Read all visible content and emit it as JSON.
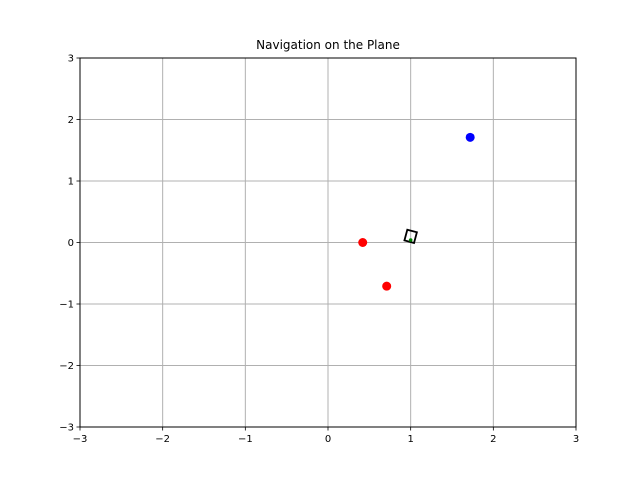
{
  "chart_data": {
    "type": "scatter",
    "title": "Navigation on the Plane",
    "xlabel": "",
    "ylabel": "",
    "xlim": [
      -3,
      3
    ],
    "ylim": [
      -3,
      3
    ],
    "xticks": [
      "−3",
      "−2",
      "−1",
      "0",
      "1",
      "2",
      "3"
    ],
    "yticks": [
      "−3",
      "−2",
      "−1",
      "0",
      "1",
      "2",
      "3"
    ],
    "grid": true,
    "series": [
      {
        "color": "#ff0000",
        "points": [
          {
            "x": 0.42,
            "y": 0.0
          },
          {
            "x": 0.71,
            "y": -0.71
          }
        ]
      },
      {
        "color": "#0000ff",
        "points": [
          {
            "x": 1.72,
            "y": 1.71
          }
        ]
      }
    ],
    "agent": {
      "shape": "rectangle",
      "center": {
        "x": 1.0,
        "y": 0.1
      },
      "width": 0.12,
      "height": 0.18,
      "angle_deg": 15,
      "edge_color": "#000000",
      "marker": {
        "x": 1.0,
        "y": 0.04,
        "color": "#008000"
      }
    }
  }
}
